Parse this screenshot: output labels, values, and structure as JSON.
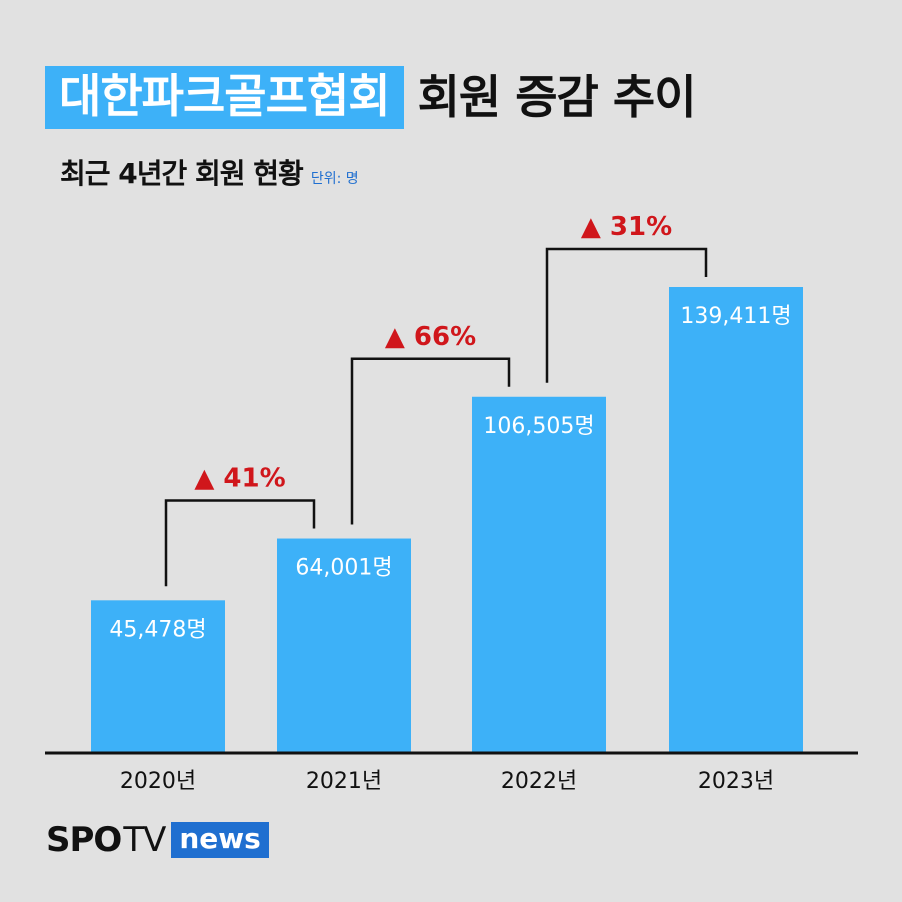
{
  "title": {
    "highlight": "대한파크골프협회",
    "rest": "회원 증감 추이"
  },
  "subtitle": {
    "main": "최근 4년간 회원 현황",
    "unit": "단위: 명"
  },
  "colors": {
    "bar": "#3db1f8",
    "increase": "#d0161b",
    "background": "#e1e1e1",
    "accent": "#1f6fd0"
  },
  "chart_data": {
    "type": "bar",
    "categories": [
      "2020년",
      "2021년",
      "2022년",
      "2023년"
    ],
    "values": [
      45478,
      64001,
      106505,
      139411
    ],
    "value_labels": [
      "45,478명",
      "64,001명",
      "106,505명",
      "139,411명"
    ],
    "increases": [
      "▲ 41%",
      "▲ 66%",
      "▲ 31%"
    ],
    "grid": false,
    "legend": "none"
  },
  "logo": {
    "spo": "SPO",
    "tv": "TV",
    "news": "news"
  }
}
